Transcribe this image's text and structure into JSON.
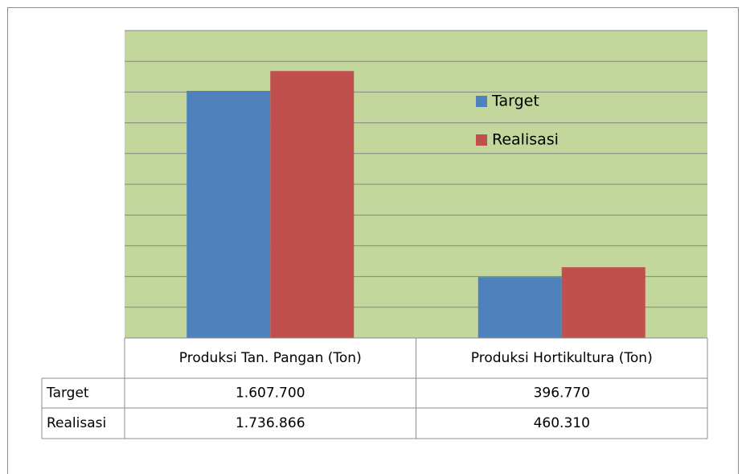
{
  "chart_data": {
    "type": "bar",
    "categories": [
      "Produksi Tan. Pangan (Ton)",
      "Produksi Hortikultura (Ton)"
    ],
    "series": [
      {
        "name": "Target",
        "color": "#4f81bd",
        "values": [
          1607700,
          396770
        ],
        "value_labels": [
          "1.607.700",
          "396.770"
        ]
      },
      {
        "name": "Realisasi",
        "color": "#c0504d",
        "values": [
          1736866,
          460310
        ],
        "value_labels": [
          "1.736.866",
          "460.310"
        ]
      }
    ],
    "ylim": [
      0,
      2000000
    ],
    "yticks": [
      0,
      200000,
      400000,
      600000,
      800000,
      1000000,
      1200000,
      1400000,
      1600000,
      1800000,
      2000000
    ],
    "grid": true,
    "legend": "right",
    "plot_background": "#c3d69b"
  }
}
